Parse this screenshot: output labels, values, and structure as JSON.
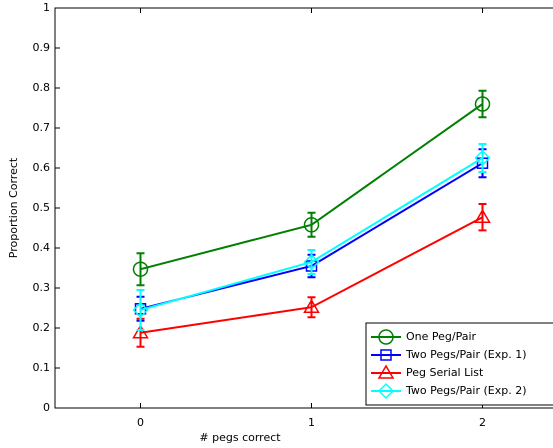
{
  "chart_data": {
    "type": "line",
    "xlabel": "# pegs correct",
    "ylabel": "Proportion Correct",
    "x": [
      0,
      1,
      2
    ],
    "xlim": [
      -0.5,
      2.5
    ],
    "xticks": [
      0,
      1,
      2
    ],
    "ylim": [
      0,
      1
    ],
    "yticks": [
      0,
      0.1,
      0.2,
      0.3,
      0.4,
      0.5,
      0.6,
      0.7,
      0.8,
      0.9,
      1
    ],
    "grid": false,
    "legend": "southeast",
    "series": [
      {
        "name": "One Peg/Pair",
        "color": "#008000",
        "marker": "circle",
        "values": [
          0.347,
          0.458,
          0.76
        ],
        "errors": [
          0.04,
          0.03,
          0.033
        ]
      },
      {
        "name": "Two Pegs/Pair (Exp. 1)",
        "color": "#0000ff",
        "marker": "square",
        "values": [
          0.248,
          0.355,
          0.612
        ],
        "errors": [
          0.03,
          0.028,
          0.035
        ]
      },
      {
        "name": "Peg Serial List",
        "color": "#ff0000",
        "marker": "triangle",
        "values": [
          0.188,
          0.252,
          0.477
        ],
        "errors": [
          0.035,
          0.025,
          0.033
        ]
      },
      {
        "name": "Two Pegs/Pair (Exp. 2)",
        "color": "#00ffff",
        "marker": "diamond",
        "values": [
          0.245,
          0.365,
          0.625
        ],
        "errors": [
          0.05,
          0.03,
          0.035
        ]
      }
    ]
  }
}
